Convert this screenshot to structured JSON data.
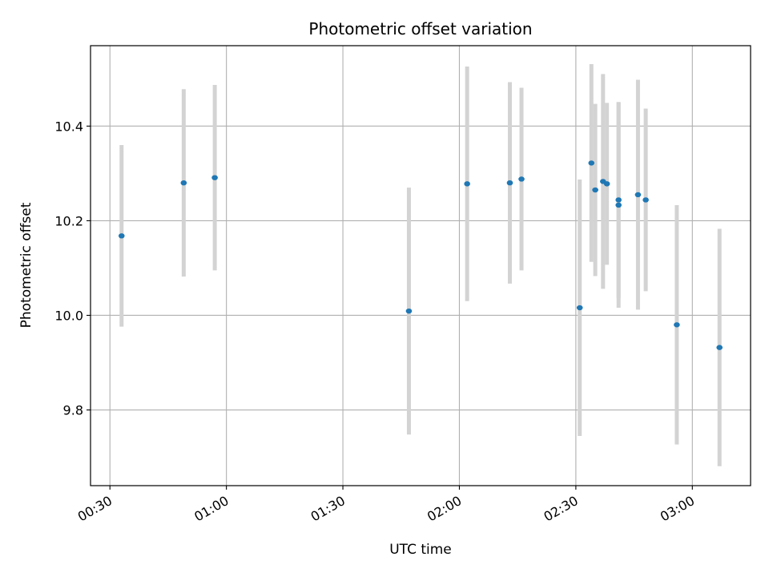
{
  "chart_data": {
    "type": "scatter",
    "title": "Photometric offset variation",
    "xlabel": "UTC time",
    "ylabel": "Photometric offset",
    "x_ticks": [
      "00:30",
      "01:00",
      "01:30",
      "02:00",
      "02:30",
      "03:00"
    ],
    "y_ticks": [
      "9.8",
      "10.0",
      "10.2",
      "10.4"
    ],
    "xlim": [
      "00:25",
      "03:15"
    ],
    "ylim": [
      9.64,
      10.57
    ],
    "grid": true,
    "colors": {
      "point": "#1f77b4",
      "errorbar": "#d3d3d3",
      "grid": "#b0b0b0"
    },
    "series": [
      {
        "x": [
          "00:33",
          "00:49",
          "00:57",
          "01:47",
          "02:02",
          "02:13",
          "02:16",
          "02:31",
          "02:34",
          "02:35",
          "02:37",
          "02:38",
          "02:41",
          "02:41",
          "02:46",
          "02:48",
          "02:56",
          "03:07"
        ],
        "y": [
          10.168,
          10.28,
          10.291,
          10.009,
          10.278,
          10.28,
          10.288,
          10.016,
          10.322,
          10.265,
          10.283,
          10.278,
          10.233,
          10.244,
          10.255,
          10.244,
          9.98,
          9.932
        ],
        "err": [
          0.192,
          0.198,
          0.196,
          0.261,
          0.248,
          0.213,
          0.193,
          0.271,
          0.209,
          0.182,
          0.227,
          0.171,
          0.217,
          0.207,
          0.243,
          0.193,
          0.253,
          0.251
        ]
      }
    ]
  }
}
